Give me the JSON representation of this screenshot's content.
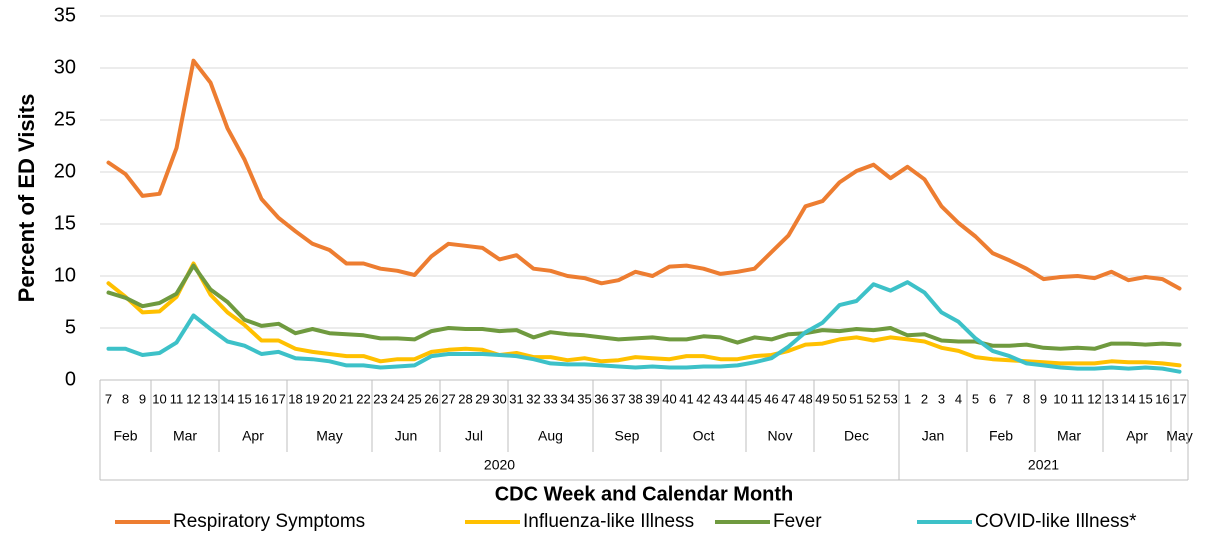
{
  "chart_data": {
    "type": "line",
    "y_label": "Percent of ED Visits",
    "x_label": "CDC Week and Calendar Month",
    "categories": [
      "7",
      "8",
      "9",
      "10",
      "11",
      "12",
      "13",
      "14",
      "15",
      "16",
      "17",
      "18",
      "19",
      "20",
      "21",
      "22",
      "23",
      "24",
      "25",
      "26",
      "27",
      "28",
      "29",
      "30",
      "31",
      "32",
      "33",
      "34",
      "35",
      "36",
      "37",
      "38",
      "39",
      "40",
      "41",
      "42",
      "43",
      "44",
      "45",
      "46",
      "47",
      "48",
      "49",
      "50",
      "51",
      "52",
      "53",
      "1",
      "2",
      "3",
      "4",
      "5",
      "6",
      "7",
      "8",
      "9",
      "10",
      "11",
      "12",
      "13",
      "14",
      "15",
      "16",
      "17"
    ],
    "month_groups": [
      {
        "label": "Feb",
        "size": 3
      },
      {
        "label": "Mar",
        "size": 4
      },
      {
        "label": "Apr",
        "size": 4
      },
      {
        "label": "May",
        "size": 5
      },
      {
        "label": "Jun",
        "size": 4
      },
      {
        "label": "Jul",
        "size": 4
      },
      {
        "label": "Aug",
        "size": 5
      },
      {
        "label": "Sep",
        "size": 4
      },
      {
        "label": "Oct",
        "size": 5
      },
      {
        "label": "Nov",
        "size": 4
      },
      {
        "label": "Dec",
        "size": 5
      },
      {
        "label": "Jan",
        "size": 4
      },
      {
        "label": "Feb",
        "size": 4
      },
      {
        "label": "Mar",
        "size": 4
      },
      {
        "label": "Apr",
        "size": 4
      },
      {
        "label": "May",
        "size": 1
      }
    ],
    "year_groups": [
      {
        "label": "2020",
        "size": 47
      },
      {
        "label": "2021",
        "size": 17
      }
    ],
    "ylim": [
      0,
      35
    ],
    "yticks": [
      0,
      5,
      10,
      15,
      20,
      25,
      30,
      35
    ],
    "grid": true,
    "legend": "bottom",
    "series": [
      {
        "name": "Respiratory Symptoms",
        "color": "#ed7d31",
        "values": [
          20.9,
          19.8,
          17.7,
          17.9,
          22.3,
          30.7,
          28.6,
          24.2,
          21.2,
          17.4,
          15.6,
          14.3,
          13.1,
          12.5,
          11.2,
          11.2,
          10.7,
          10.5,
          10.1,
          11.9,
          13.1,
          12.9,
          12.7,
          11.6,
          12.0,
          10.7,
          10.5,
          10.0,
          9.8,
          9.3,
          9.6,
          10.4,
          10.0,
          10.9,
          11.0,
          10.7,
          10.2,
          10.4,
          10.7,
          12.3,
          13.9,
          16.7,
          17.2,
          19.0,
          20.1,
          20.7,
          19.4,
          20.5,
          19.3,
          16.7,
          15.1,
          13.8,
          12.2,
          11.5,
          10.7,
          9.7,
          9.9,
          10.0,
          9.8,
          10.4,
          9.6,
          9.9,
          9.7,
          8.8
        ]
      },
      {
        "name": "Influenza-like Illness",
        "color": "#ffc000",
        "values": [
          9.3,
          8.0,
          6.5,
          6.6,
          8.0,
          11.2,
          8.2,
          6.5,
          5.3,
          3.8,
          3.8,
          3.0,
          2.7,
          2.5,
          2.3,
          2.3,
          1.8,
          2.0,
          2.0,
          2.7,
          2.9,
          3.0,
          2.9,
          2.4,
          2.6,
          2.2,
          2.2,
          1.9,
          2.1,
          1.8,
          1.9,
          2.2,
          2.1,
          2.0,
          2.3,
          2.3,
          2.0,
          2.0,
          2.3,
          2.4,
          2.8,
          3.4,
          3.5,
          3.9,
          4.1,
          3.8,
          4.1,
          3.9,
          3.7,
          3.1,
          2.8,
          2.2,
          2.0,
          1.9,
          1.8,
          1.7,
          1.6,
          1.6,
          1.6,
          1.8,
          1.7,
          1.7,
          1.6,
          1.4
        ]
      },
      {
        "name": "Fever",
        "color": "#6f9a3f",
        "values": [
          8.4,
          7.9,
          7.1,
          7.4,
          8.3,
          11.0,
          8.7,
          7.5,
          5.8,
          5.2,
          5.4,
          4.5,
          4.9,
          4.5,
          4.4,
          4.3,
          4.0,
          4.0,
          3.9,
          4.7,
          5.0,
          4.9,
          4.9,
          4.7,
          4.8,
          4.1,
          4.6,
          4.4,
          4.3,
          4.1,
          3.9,
          4.0,
          4.1,
          3.9,
          3.9,
          4.2,
          4.1,
          3.6,
          4.1,
          3.9,
          4.4,
          4.5,
          4.8,
          4.7,
          4.9,
          4.8,
          5.0,
          4.3,
          4.4,
          3.8,
          3.7,
          3.7,
          3.3,
          3.3,
          3.4,
          3.1,
          3.0,
          3.1,
          3.0,
          3.5,
          3.5,
          3.4,
          3.5,
          3.4
        ]
      },
      {
        "name": "COVID-like Illness*",
        "color": "#3dc1c8",
        "values": [
          3.0,
          3.0,
          2.4,
          2.6,
          3.6,
          6.2,
          4.9,
          3.7,
          3.3,
          2.5,
          2.7,
          2.1,
          2.0,
          1.8,
          1.4,
          1.4,
          1.2,
          1.3,
          1.4,
          2.3,
          2.5,
          2.5,
          2.5,
          2.4,
          2.3,
          2.0,
          1.6,
          1.5,
          1.5,
          1.4,
          1.3,
          1.2,
          1.3,
          1.2,
          1.2,
          1.3,
          1.3,
          1.4,
          1.7,
          2.1,
          3.2,
          4.6,
          5.5,
          7.2,
          7.6,
          9.2,
          8.6,
          9.4,
          8.4,
          6.5,
          5.6,
          4.0,
          2.8,
          2.3,
          1.6,
          1.4,
          1.2,
          1.1,
          1.1,
          1.2,
          1.1,
          1.2,
          1.1,
          0.8
        ]
      }
    ]
  }
}
